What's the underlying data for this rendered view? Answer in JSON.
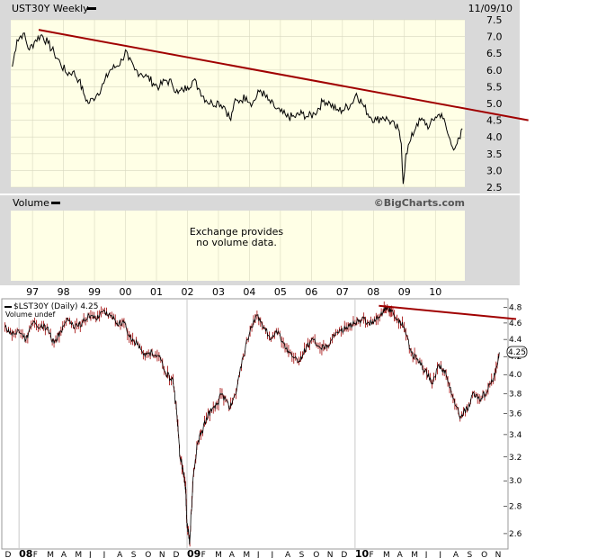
{
  "chart_data": [
    {
      "type": "line",
      "title": "UST30Y Weekly",
      "date_label": "11/09/10",
      "watermark": "©BigCharts.com",
      "volume_label": "Volume",
      "volume_message": [
        "Exchange provides",
        "no volume data."
      ],
      "x_tick_labels": [
        "97",
        "98",
        "99",
        "00",
        "01",
        "02",
        "03",
        "04",
        "05",
        "06",
        "07",
        "08",
        "09",
        "10"
      ],
      "xlim": [
        1996.3,
        2010.95
      ],
      "ylim": [
        2.5,
        7.5
      ],
      "y_ticks": [
        2.5,
        3.0,
        3.5,
        4.0,
        4.5,
        5.0,
        5.5,
        6.0,
        6.5,
        7.0,
        7.5
      ],
      "grid": true,
      "colors": {
        "panel": "#ffffe6",
        "frame": "#cccccc",
        "line": "#000000",
        "trendline": "#a00000"
      },
      "series": [
        {
          "x": [
            1996.35,
            1996.5,
            1996.7,
            1996.9,
            1997.1,
            1997.3,
            1997.5,
            1997.7,
            1997.9,
            1998.1,
            1998.3,
            1998.5,
            1998.65,
            1998.8,
            1998.95,
            1999.1,
            1999.3,
            1999.5,
            1999.7,
            1999.9,
            2000.0,
            2000.1,
            2000.3,
            2000.5,
            2000.7,
            2000.9,
            2001.1,
            2001.3,
            2001.5,
            2001.7,
            2001.85,
            2002.0,
            2002.2,
            2002.4,
            2002.6,
            2002.8,
            2003.0,
            2003.2,
            2003.4,
            2003.5,
            2003.7,
            2003.9,
            2004.1,
            2004.35,
            2004.6,
            2004.8,
            2005.0,
            2005.2,
            2005.45,
            2005.7,
            2005.9,
            2006.1,
            2006.4,
            2006.6,
            2006.8,
            2007.0,
            2007.3,
            2007.45,
            2007.7,
            2007.9,
            2008.1,
            2008.3,
            2008.5,
            2008.7,
            2008.8,
            2008.9,
            2008.96,
            2009.05,
            2009.2,
            2009.4,
            2009.6,
            2009.8,
            2010.0,
            2010.2,
            2010.4,
            2010.55,
            2010.7,
            2010.8,
            2010.87
          ],
          "values": [
            6.1,
            6.9,
            7.1,
            6.6,
            6.9,
            7.05,
            6.8,
            6.5,
            6.2,
            5.9,
            5.95,
            5.7,
            5.3,
            5.0,
            5.15,
            5.3,
            5.6,
            6.0,
            6.1,
            6.3,
            6.6,
            6.3,
            6.0,
            5.9,
            5.8,
            5.6,
            5.5,
            5.7,
            5.6,
            5.3,
            5.4,
            5.5,
            5.7,
            5.4,
            5.1,
            5.0,
            5.05,
            4.9,
            4.5,
            5.0,
            5.1,
            5.2,
            5.0,
            5.4,
            5.1,
            4.9,
            4.75,
            4.6,
            4.6,
            4.7,
            4.6,
            4.7,
            5.1,
            5.0,
            4.8,
            4.8,
            5.0,
            5.3,
            4.9,
            4.6,
            4.5,
            4.6,
            4.5,
            4.3,
            4.25,
            3.8,
            2.6,
            3.5,
            3.9,
            4.4,
            4.5,
            4.3,
            4.6,
            4.7,
            4.1,
            3.7,
            3.8,
            3.95,
            4.25
          ]
        }
      ],
      "trendline": {
        "x": [
          1997.2,
          2013.0
        ],
        "values": [
          7.2,
          4.5
        ]
      }
    },
    {
      "type": "line",
      "title": "$LST30Y (Daily) 4.25",
      "subtitle": "Volume undef",
      "last_value_label": "4.25",
      "x_tick_labels": [
        "D",
        "08",
        "F",
        "M",
        "A",
        "M",
        "J",
        "J",
        "A",
        "S",
        "O",
        "N",
        "D",
        "09",
        "F",
        "M",
        "A",
        "M",
        "J",
        "J",
        "A",
        "S",
        "O",
        "N",
        "D",
        "10",
        "F",
        "M",
        "A",
        "M",
        "J",
        "J",
        "A",
        "S",
        "O",
        "N"
      ],
      "x_tick_month_index": [
        0,
        1,
        2,
        3,
        4,
        5,
        6,
        7,
        8,
        9,
        10,
        11,
        12,
        13,
        14,
        15,
        16,
        17,
        18,
        19,
        20,
        21,
        22,
        23,
        24,
        25,
        26,
        27,
        28,
        29,
        30,
        31,
        32,
        33,
        34,
        35
      ],
      "x_tick_bold": [
        false,
        true,
        false,
        false,
        false,
        false,
        false,
        false,
        false,
        false,
        false,
        false,
        false,
        true,
        false,
        false,
        false,
        false,
        false,
        false,
        false,
        false,
        false,
        false,
        false,
        true,
        false,
        false,
        false,
        false,
        false,
        false,
        false,
        false,
        false,
        false
      ],
      "xlim": [
        -0.1,
        35.6
      ],
      "ylim": [
        2.5,
        4.9
      ],
      "y_ticks": [
        2.6,
        2.8,
        3.0,
        3.2,
        3.4,
        3.6,
        3.8,
        4.0,
        4.2,
        4.4,
        4.6,
        4.8
      ],
      "y_scale": "log",
      "colors": {
        "line": "#000000",
        "bars": "#a00000",
        "trendline": "#a00000"
      },
      "series": [
        {
          "x": [
            0.0,
            0.5,
            1.0,
            1.5,
            2.0,
            2.5,
            3.0,
            3.5,
            4.0,
            4.5,
            5.0,
            5.5,
            6.0,
            6.5,
            7.0,
            7.5,
            8.0,
            8.5,
            9.0,
            9.5,
            10.0,
            10.5,
            11.0,
            11.5,
            12.0,
            12.3,
            12.5,
            12.7,
            12.9,
            13.0,
            13.2,
            13.4,
            13.7,
            14.0,
            14.5,
            15.0,
            15.5,
            16.0,
            16.5,
            17.0,
            17.5,
            18.0,
            18.5,
            19.0,
            19.5,
            20.0,
            20.5,
            21.0,
            21.5,
            22.0,
            22.5,
            23.0,
            23.5,
            24.0,
            24.5,
            25.0,
            25.5,
            26.0,
            26.5,
            27.0,
            27.3,
            27.6,
            28.0,
            28.5,
            29.0,
            29.5,
            30.0,
            30.5,
            31.0,
            31.5,
            32.0,
            32.5,
            33.0,
            33.5,
            34.0,
            34.5,
            35.0,
            35.3
          ],
          "values": [
            4.55,
            4.45,
            4.5,
            4.4,
            4.6,
            4.55,
            4.55,
            4.35,
            4.5,
            4.65,
            4.55,
            4.6,
            4.7,
            4.65,
            4.75,
            4.7,
            4.6,
            4.6,
            4.4,
            4.35,
            4.2,
            4.25,
            4.2,
            4.0,
            3.95,
            3.55,
            3.2,
            3.1,
            2.95,
            2.65,
            2.55,
            2.95,
            3.3,
            3.4,
            3.6,
            3.65,
            3.8,
            3.65,
            3.8,
            4.2,
            4.5,
            4.7,
            4.55,
            4.4,
            4.5,
            4.3,
            4.2,
            4.15,
            4.3,
            4.4,
            4.3,
            4.3,
            4.45,
            4.5,
            4.55,
            4.6,
            4.65,
            4.6,
            4.65,
            4.75,
            4.8,
            4.75,
            4.65,
            4.55,
            4.25,
            4.15,
            4.05,
            3.9,
            4.1,
            4.0,
            3.75,
            3.55,
            3.65,
            3.8,
            3.75,
            3.85,
            4.0,
            4.25
          ]
        }
      ],
      "trendline": {
        "x": [
          26.7,
          36.5
        ],
        "values": [
          4.82,
          4.65
        ]
      }
    }
  ]
}
